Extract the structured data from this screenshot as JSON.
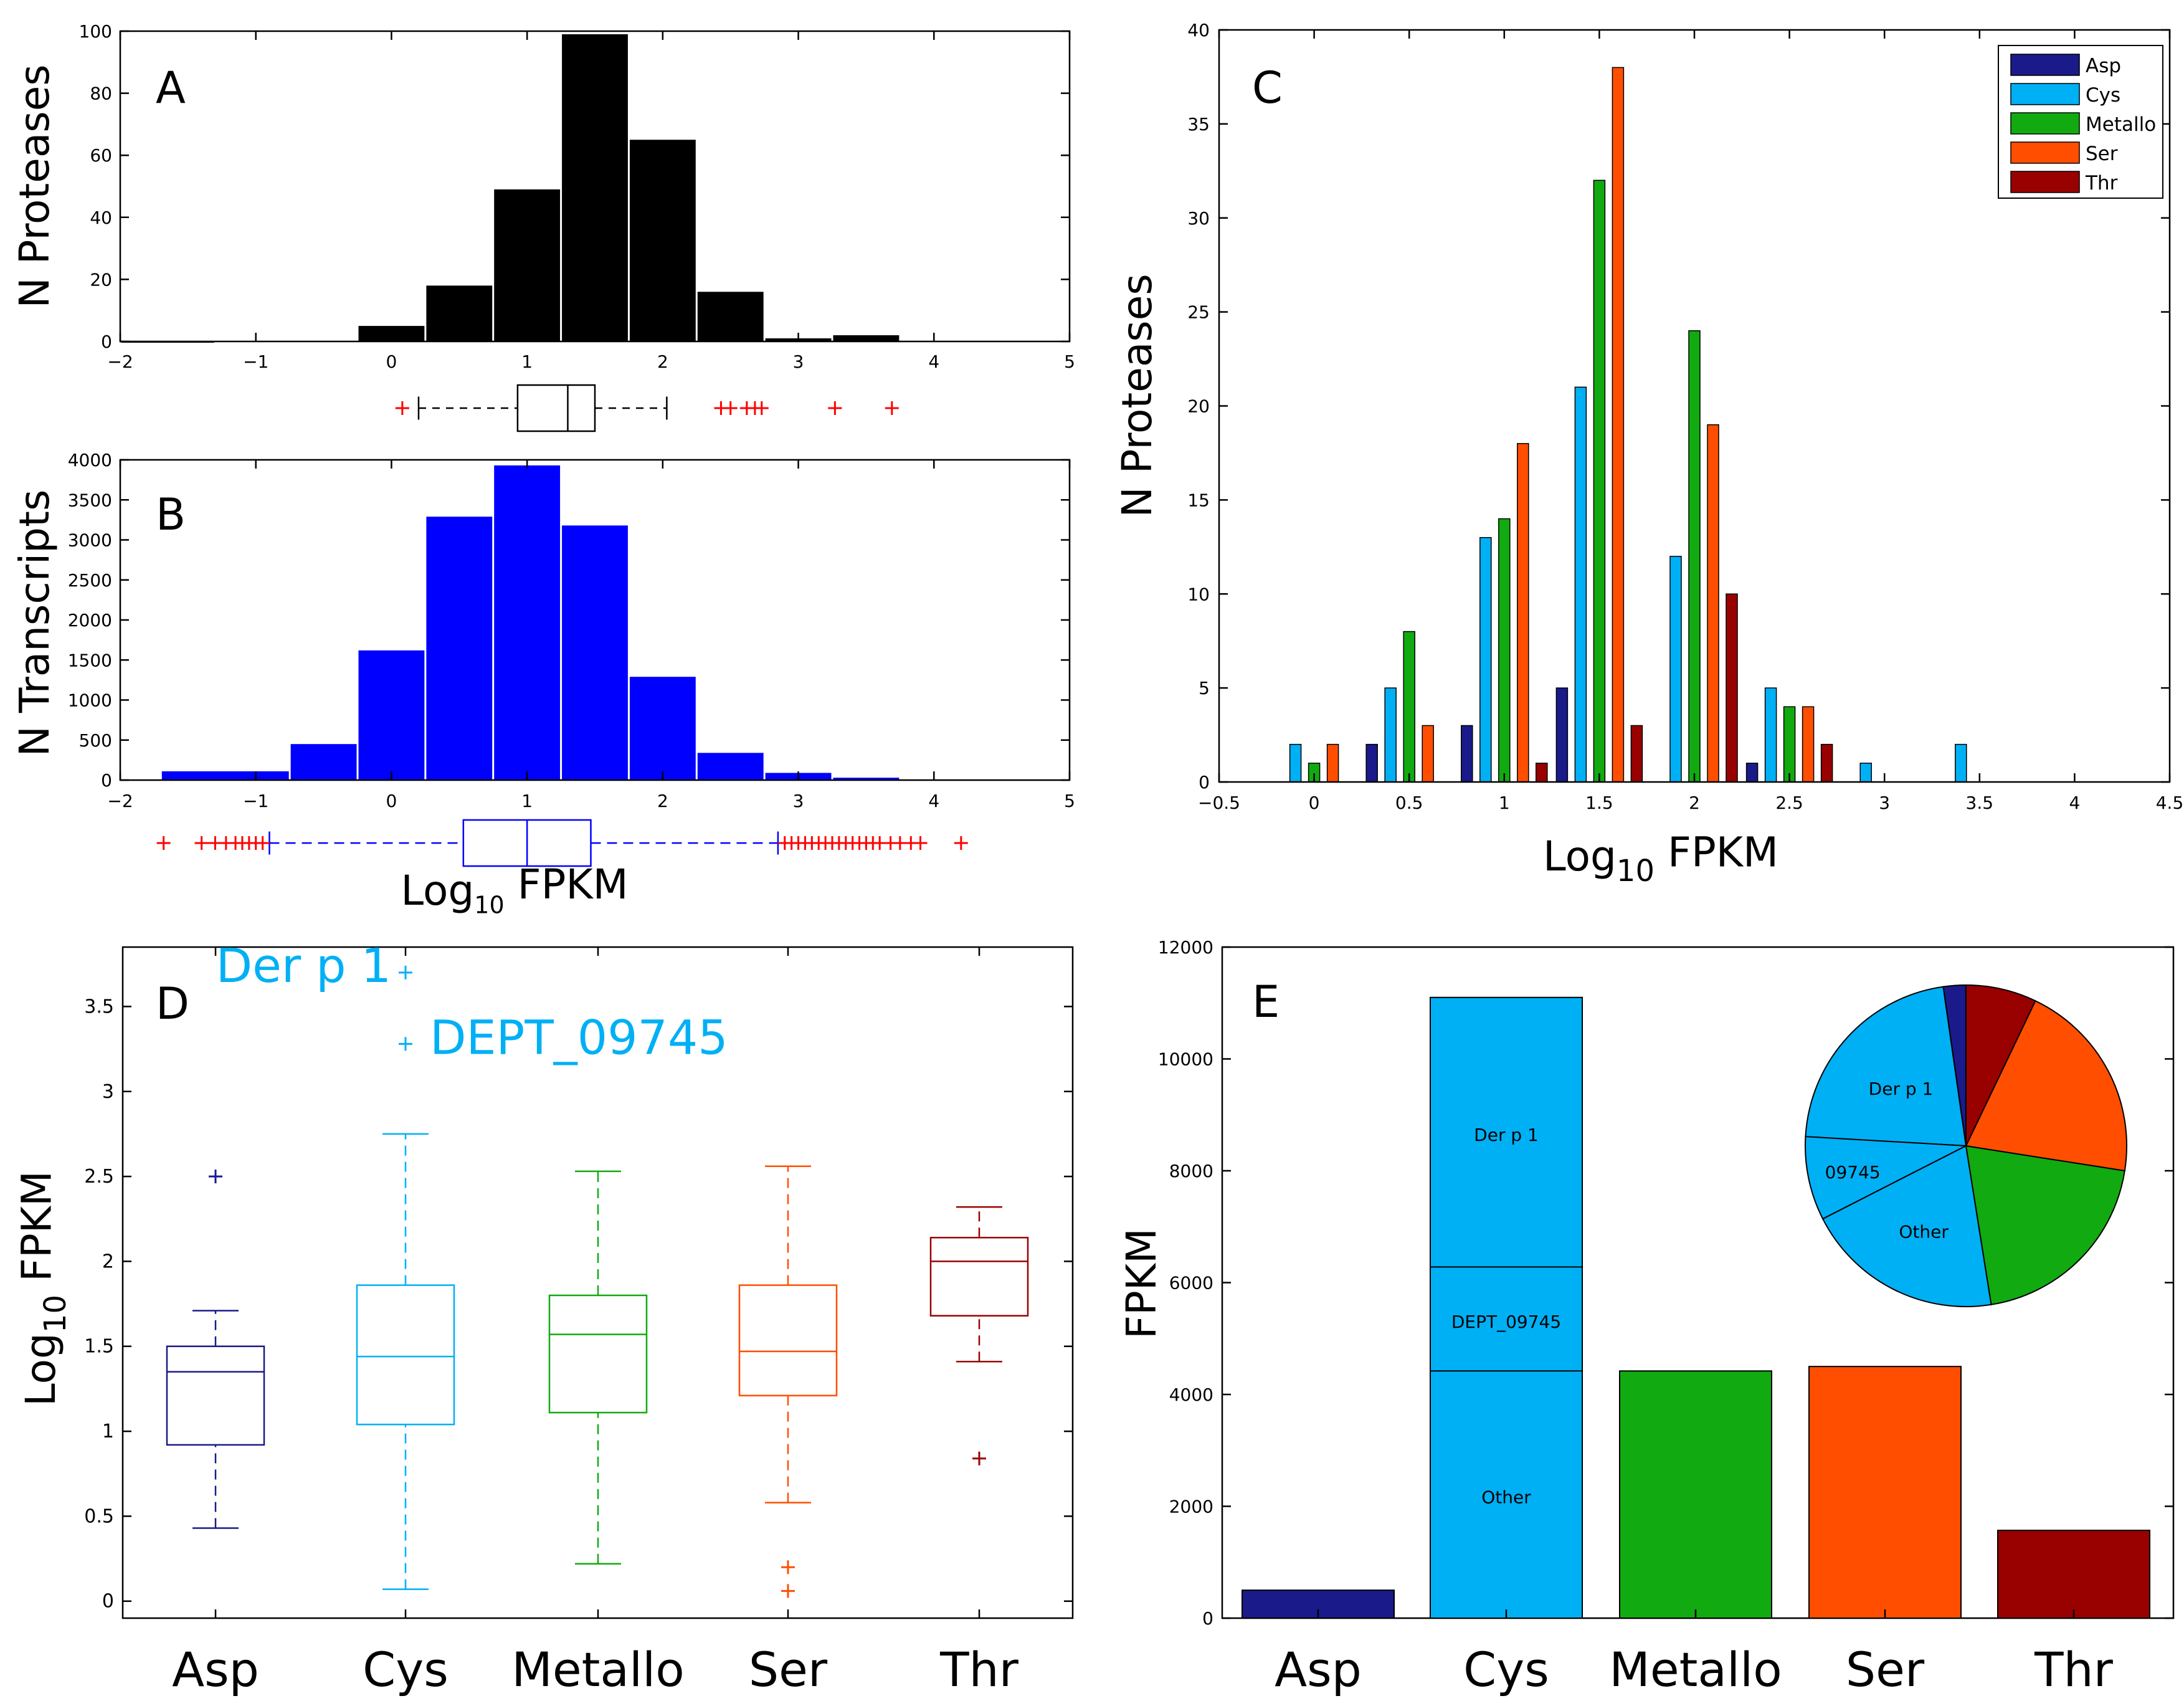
{
  "colors": {
    "Asp": "#1a1a8a",
    "Cys": "#00b0f5",
    "Metallo": "#11aa11",
    "Ser": "#ff4e00",
    "Thr": "#990000",
    "protease_hist": "#000000",
    "transcript_hist": "#0000ff",
    "outlier": "#ff0000"
  },
  "chart_data": [
    {
      "panel": "A",
      "type": "bar",
      "ylabel": "N Proteases",
      "xlim": [
        -2,
        5
      ],
      "ylim": [
        0,
        100
      ],
      "xticks": [
        "−2",
        "−1",
        "0",
        "1",
        "2",
        "3",
        "4",
        "5"
      ],
      "yticks": [
        "0",
        "20",
        "40",
        "60",
        "80",
        "100"
      ],
      "bins": [
        {
          "x0": -2,
          "x1": -1.3,
          "value": 0
        },
        {
          "x0": -0.25,
          "x1": 0.25,
          "value": 5
        },
        {
          "x0": 0.25,
          "x1": 0.75,
          "value": 18
        },
        {
          "x0": 0.75,
          "x1": 1.25,
          "value": 49
        },
        {
          "x0": 1.25,
          "x1": 1.75,
          "value": 99
        },
        {
          "x0": 1.75,
          "x1": 2.25,
          "value": 65
        },
        {
          "x0": 2.25,
          "x1": 2.75,
          "value": 16
        },
        {
          "x0": 2.75,
          "x1": 3.25,
          "value": 1
        },
        {
          "x0": 3.25,
          "x1": 3.75,
          "value": 2
        }
      ],
      "boxplot": {
        "whisker_low": 0.2,
        "q1": 0.93,
        "median": 1.3,
        "q3": 1.5,
        "whisker_high": 2.03,
        "outliers": [
          0.08,
          2.43,
          2.5,
          2.62,
          2.68,
          2.73,
          3.27,
          3.69
        ]
      }
    },
    {
      "panel": "B",
      "type": "bar",
      "ylabel": "N Transcripts",
      "xlabel": "Log10 FPKM",
      "xlim": [
        -2,
        5
      ],
      "ylim": [
        0,
        4000
      ],
      "xticks": [
        "−2",
        "−1",
        "0",
        "1",
        "2",
        "3",
        "4",
        "5"
      ],
      "yticks": [
        "0",
        "500",
        "1000",
        "1500",
        "2000",
        "2500",
        "3000",
        "3500",
        "4000"
      ],
      "bins": [
        {
          "x0": -1.7,
          "x1": -0.75,
          "value": 110
        },
        {
          "x0": -0.75,
          "x1": -0.25,
          "value": 450
        },
        {
          "x0": -0.25,
          "x1": 0.25,
          "value": 1620
        },
        {
          "x0": 0.25,
          "x1": 0.75,
          "value": 3290
        },
        {
          "x0": 0.75,
          "x1": 1.25,
          "value": 3930
        },
        {
          "x0": 1.25,
          "x1": 1.75,
          "value": 3180
        },
        {
          "x0": 1.75,
          "x1": 2.25,
          "value": 1290
        },
        {
          "x0": 2.25,
          "x1": 2.75,
          "value": 340
        },
        {
          "x0": 2.75,
          "x1": 3.25,
          "value": 90
        },
        {
          "x0": 3.25,
          "x1": 3.75,
          "value": 30
        }
      ],
      "boxplot": {
        "whisker_low": -0.9,
        "q1": 0.53,
        "median": 1.0,
        "q3": 1.47,
        "whisker_high": 2.85,
        "outliers": [
          -1.68,
          -1.4,
          -1.3,
          -1.22,
          -1.15,
          -1.1,
          -1.05,
          -1.0,
          -0.95,
          2.9,
          2.95,
          3.0,
          3.05,
          3.1,
          3.15,
          3.2,
          3.25,
          3.3,
          3.35,
          3.4,
          3.45,
          3.5,
          3.55,
          3.6,
          3.68,
          3.75,
          3.83,
          3.9,
          4.2
        ]
      }
    },
    {
      "panel": "C",
      "type": "bar",
      "ylabel": "N Proteases",
      "xlabel": "Log10 FPKM",
      "xlim": [
        -0.5,
        4.5
      ],
      "ylim": [
        0,
        40
      ],
      "xticks": [
        "−0.5",
        "0",
        "0.5",
        "1",
        "1.5",
        "2",
        "2.5",
        "3",
        "3.5",
        "4",
        "4.5"
      ],
      "yticks": [
        "0",
        "5",
        "10",
        "15",
        "20",
        "25",
        "30",
        "35",
        "40"
      ],
      "x": [
        0,
        0.5,
        1,
        1.5,
        2,
        2.5,
        3,
        3.5
      ],
      "series": [
        {
          "name": "Asp",
          "values": [
            0,
            2,
            3,
            5,
            0,
            1,
            0,
            0
          ]
        },
        {
          "name": "Cys",
          "values": [
            2,
            5,
            13,
            21,
            12,
            5,
            1,
            2
          ]
        },
        {
          "name": "Metallo",
          "values": [
            1,
            8,
            14,
            32,
            24,
            4,
            0,
            0
          ]
        },
        {
          "name": "Ser",
          "values": [
            2,
            3,
            18,
            38,
            19,
            4,
            0,
            0
          ]
        },
        {
          "name": "Thr",
          "values": [
            0,
            0,
            1,
            3,
            10,
            2,
            0,
            0
          ]
        }
      ],
      "legend": [
        "Asp",
        "Cys",
        "Metallo",
        "Ser",
        "Thr"
      ],
      "legend_position": "top-right"
    },
    {
      "panel": "D",
      "type": "box",
      "ylabel": "Log10 FPKM",
      "ylim": [
        -0.1,
        3.85
      ],
      "yticks": [
        "0",
        "0.5",
        "1",
        "1.5",
        "2",
        "2.5",
        "3",
        "3.5"
      ],
      "categories": [
        "Asp",
        "Cys",
        "Metallo",
        "Ser",
        "Thr"
      ],
      "boxes": [
        {
          "name": "Asp",
          "whisker_low": 0.43,
          "q1": 0.92,
          "median": 1.35,
          "q3": 1.5,
          "whisker_high": 1.71,
          "outliers": [
            2.5
          ]
        },
        {
          "name": "Cys",
          "whisker_low": 0.07,
          "q1": 1.04,
          "median": 1.44,
          "q3": 1.86,
          "whisker_high": 2.75,
          "outliers": [
            3.7,
            3.28
          ]
        },
        {
          "name": "Metallo",
          "whisker_low": 0.22,
          "q1": 1.11,
          "median": 1.57,
          "q3": 1.8,
          "whisker_high": 2.53,
          "outliers": []
        },
        {
          "name": "Ser",
          "whisker_low": 0.58,
          "q1": 1.21,
          "median": 1.47,
          "q3": 1.86,
          "whisker_high": 2.56,
          "outliers": [
            0.2,
            0.06
          ]
        },
        {
          "name": "Thr",
          "whisker_low": 1.41,
          "q1": 1.68,
          "median": 2.0,
          "q3": 2.14,
          "whisker_high": 2.32,
          "outliers": [
            0.84
          ]
        }
      ],
      "annotations": [
        "Der p 1",
        "DEPT_09745"
      ]
    },
    {
      "panel": "E",
      "type": "bar",
      "ylabel": "FPKM",
      "ylim": [
        0,
        12000
      ],
      "yticks": [
        "0",
        "2000",
        "4000",
        "6000",
        "8000",
        "10000",
        "12000"
      ],
      "categories": [
        "Asp",
        "Cys",
        "Metallo",
        "Ser",
        "Thr"
      ],
      "values": [
        500,
        11100,
        4420,
        4500,
        1570
      ],
      "cys_segments": [
        {
          "label": "Other",
          "value": 4420
        },
        {
          "label": "DEPT_09745",
          "value": 1860
        },
        {
          "label": "Der p 1",
          "value": 4820
        }
      ],
      "pie": {
        "slices": [
          {
            "label": "Asp",
            "value": 500
          },
          {
            "label": "Der p 1",
            "value": 4820
          },
          {
            "label": "09745",
            "value": 1860
          },
          {
            "label": "Other",
            "value": 4420
          },
          {
            "label": "Metallo",
            "value": 4420
          },
          {
            "label": "Ser",
            "value": 4500
          },
          {
            "label": "Thr",
            "value": 1570
          }
        ],
        "labels": [
          "Der p 1",
          "09745",
          "Other"
        ]
      }
    }
  ]
}
